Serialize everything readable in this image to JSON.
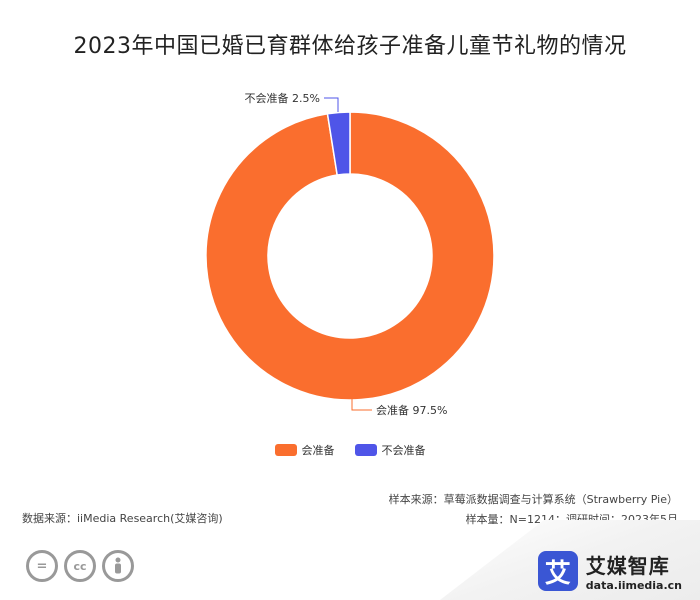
{
  "title": "2023年中国已婚已育群体给孩子准备儿童节礼物的情况",
  "chart_data": {
    "type": "pie",
    "donut": true,
    "categories": [
      "会准备",
      "不会准备"
    ],
    "values": [
      97.5,
      2.5
    ],
    "colors": [
      "#fa6e2e",
      "#4f55e8"
    ],
    "data_labels": [
      "会准备 97.5%",
      "不会准备 2.5%"
    ],
    "legend_position": "bottom"
  },
  "legend": [
    {
      "label": "会准备",
      "color": "#fa6e2e"
    },
    {
      "label": "不会准备",
      "color": "#4f55e8"
    }
  ],
  "footer": {
    "data_source": "数据来源：iiMedia Research(艾媒咨询)",
    "sample_source": "样本来源：草莓派数据调查与计算系统（Strawberry Pie）",
    "sample_info": "样本量：N=1214；调研时间：2023年5月"
  },
  "brand": {
    "logo_char": "艾",
    "name": "艾媒智库",
    "url": "data.iimedia.cn"
  },
  "license_icons": [
    "equals-icon",
    "cc-icon",
    "person-icon"
  ]
}
